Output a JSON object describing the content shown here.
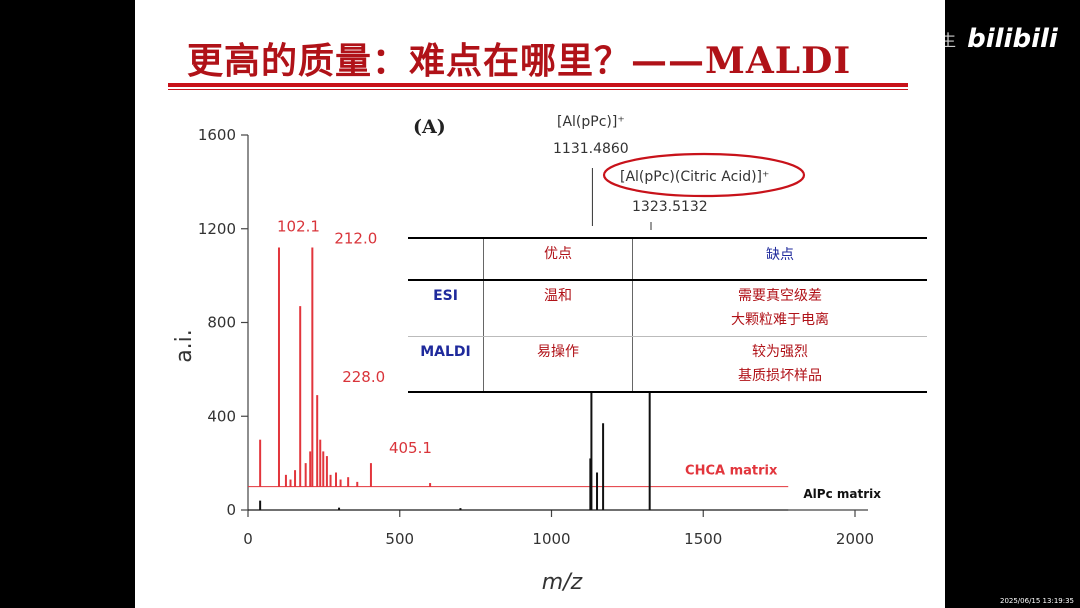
{
  "slide": {
    "title": "更高的质量：难点在哪里？——MALDI"
  },
  "watermark": {
    "user": "逞舟安生",
    "logo": "bilibili",
    "timestamp": "2025/06/15 13:19:35"
  },
  "chart_data": {
    "type": "line",
    "panel_label": "(A)",
    "xlabel": "m/z",
    "ylabel": "a.i.",
    "xlim": [
      0,
      2000
    ],
    "ylim": [
      0,
      1600
    ],
    "x_ticks": [
      "0",
      "500",
      "1000",
      "1500",
      "2000"
    ],
    "y_ticks": [
      "0",
      "400",
      "800",
      "1200",
      "1600"
    ],
    "series": [
      {
        "name": "CHCA matrix",
        "color": "#e2353c",
        "baseline": 100,
        "peaks": [
          {
            "x": 40,
            "y": 300
          },
          {
            "x": 102.1,
            "y": 1120
          },
          {
            "x": 125,
            "y": 150
          },
          {
            "x": 140,
            "y": 130
          },
          {
            "x": 155,
            "y": 170
          },
          {
            "x": 172,
            "y": 870
          },
          {
            "x": 190,
            "y": 200
          },
          {
            "x": 205,
            "y": 250
          },
          {
            "x": 212,
            "y": 1120
          },
          {
            "x": 228,
            "y": 490
          },
          {
            "x": 238,
            "y": 300
          },
          {
            "x": 248,
            "y": 250
          },
          {
            "x": 260,
            "y": 230
          },
          {
            "x": 272,
            "y": 150
          },
          {
            "x": 290,
            "y": 160
          },
          {
            "x": 305,
            "y": 130
          },
          {
            "x": 330,
            "y": 140
          },
          {
            "x": 360,
            "y": 120
          },
          {
            "x": 405.1,
            "y": 200
          },
          {
            "x": 600,
            "y": 115
          }
        ],
        "peak_labels": [
          {
            "text": "102.1",
            "x": 102.1,
            "y": 1120
          },
          {
            "text": "212.0",
            "x": 212.0,
            "y": 1120
          },
          {
            "text": "228.0",
            "x": 228.0,
            "y": 490
          },
          {
            "text": "405.1",
            "x": 405.1,
            "y": 200
          }
        ]
      },
      {
        "name": "AlPc matrix",
        "color": "#111111",
        "baseline": 0,
        "peaks": [
          {
            "x": 40,
            "y": 40
          },
          {
            "x": 1128,
            "y": 220
          },
          {
            "x": 1131.5,
            "y": 500
          },
          {
            "x": 1150,
            "y": 160
          },
          {
            "x": 1170,
            "y": 370
          },
          {
            "x": 1323.5,
            "y": 505
          },
          {
            "x": 300,
            "y": 10
          },
          {
            "x": 700,
            "y": 8
          }
        ]
      }
    ],
    "annotations": [
      {
        "text": "[Al(pPc)]⁺",
        "mass": "1131.4860",
        "x": 1131.5
      },
      {
        "text": "[Al(pPc)(Citric Acid)]⁺",
        "mass": "1323.5132",
        "x": 1323.5,
        "circled": true
      }
    ]
  },
  "comparison_table": {
    "headers": [
      "",
      "优点",
      "缺点"
    ],
    "rows": [
      {
        "label": "ESI",
        "pros": [
          "温和"
        ],
        "cons": [
          "需要真空级差",
          "大颗粒难于电离"
        ]
      },
      {
        "label": "MALDI",
        "pros": [
          "易操作"
        ],
        "cons": [
          "较为强烈",
          "基质损坏样品"
        ]
      }
    ]
  }
}
